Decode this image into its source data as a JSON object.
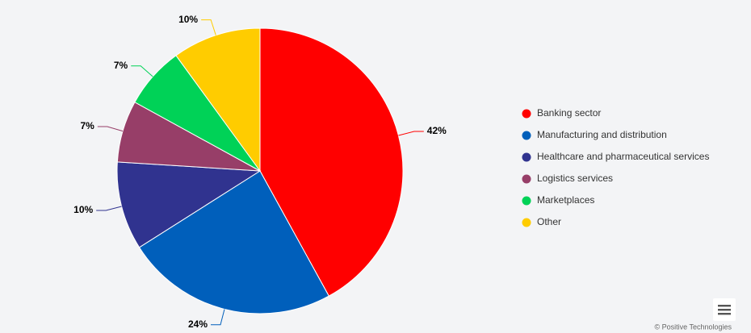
{
  "chart_data": {
    "type": "pie",
    "categories": [
      "Banking sector",
      "Manufacturing and distribution",
      "Healthcare and pharmaceutical services",
      "Logistics services",
      "Marketplaces",
      "Other"
    ],
    "values": [
      42,
      24,
      10,
      7,
      7,
      10
    ],
    "value_labels": [
      "42%",
      "24%",
      "10%",
      "7%",
      "7%",
      "10%"
    ],
    "colors": [
      "#ff0000",
      "#005fbb",
      "#30338f",
      "#973e68",
      "#00d257",
      "#ffcc00"
    ],
    "legend": "right",
    "credit": "© Positive Technologies"
  }
}
